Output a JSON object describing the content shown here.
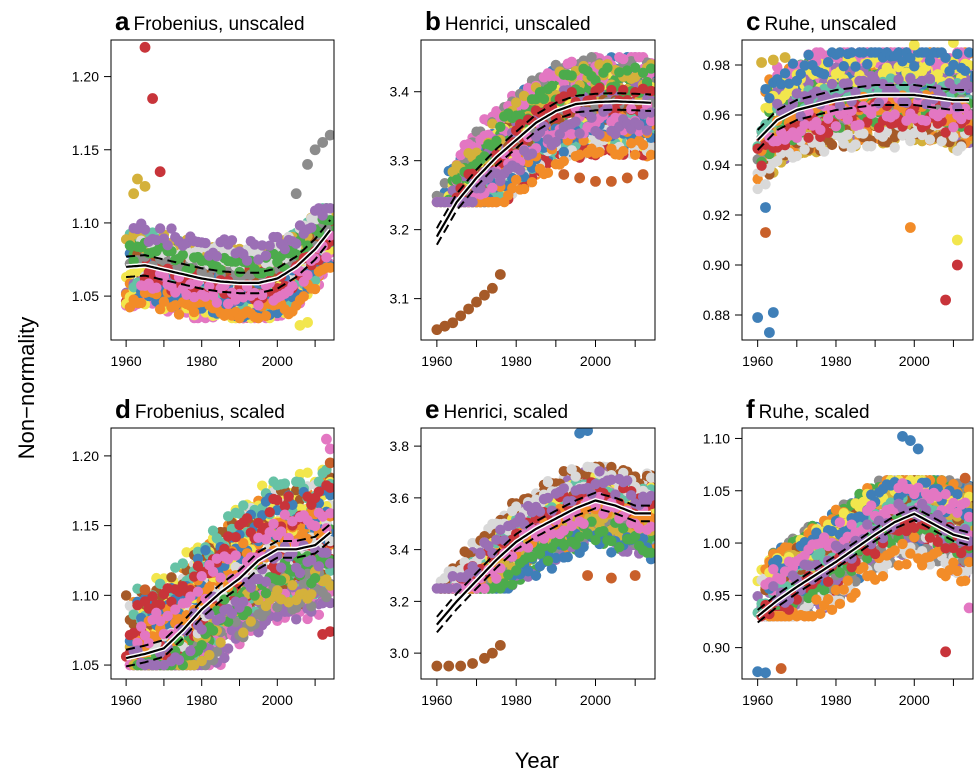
{
  "figure": {
    "ylabel": "Non−normality",
    "xlabel": "Year"
  },
  "palette": [
    "#3f7fb8",
    "#4cab4c",
    "#f28c28",
    "#c8343a",
    "#e377c2",
    "#9b6fb5",
    "#a65a28",
    "#8c8c8c",
    "#d4b13b",
    "#f2e64d",
    "#66c2a5",
    "#d9d9d9"
  ],
  "chart_data": [
    {
      "id": "a",
      "letter": "a",
      "title": "Frobenius, unscaled",
      "type": "scatter",
      "xlim": [
        1956,
        2015
      ],
      "ylim": [
        1.02,
        1.225
      ],
      "xticks": [
        1960,
        1980,
        2000
      ],
      "yticks": [
        1.05,
        1.1,
        1.15,
        1.2
      ],
      "ytick_labels": [
        "1.05",
        "1.10",
        "1.15",
        "1.20"
      ],
      "series_count": 30,
      "band": {
        "min": 1.035,
        "max": 1.11
      },
      "trend": {
        "x": [
          1960,
          1965,
          1970,
          1975,
          1980,
          1985,
          1990,
          1995,
          2000,
          2005,
          2010,
          2014
        ],
        "y": [
          1.07,
          1.071,
          1.068,
          1.065,
          1.062,
          1.06,
          1.059,
          1.059,
          1.062,
          1.07,
          1.082,
          1.095
        ],
        "ci": 0.007
      },
      "highlights": [
        {
          "x": 1965,
          "y": 1.22,
          "color": "#c8343a"
        },
        {
          "x": 1967,
          "y": 1.185,
          "color": "#c8343a"
        },
        {
          "x": 1962,
          "y": 1.12,
          "color": "#d4b13b"
        },
        {
          "x": 1963,
          "y": 1.13,
          "color": "#d4b13b"
        },
        {
          "x": 1965,
          "y": 1.125,
          "color": "#d4b13b"
        },
        {
          "x": 1969,
          "y": 1.135,
          "color": "#c8343a"
        },
        {
          "x": 2005,
          "y": 1.12,
          "color": "#8c8c8c"
        },
        {
          "x": 2008,
          "y": 1.14,
          "color": "#8c8c8c"
        },
        {
          "x": 2010,
          "y": 1.15,
          "color": "#8c8c8c"
        },
        {
          "x": 2012,
          "y": 1.155,
          "color": "#8c8c8c"
        },
        {
          "x": 2014,
          "y": 1.16,
          "color": "#8c8c8c"
        },
        {
          "x": 2006,
          "y": 1.03,
          "color": "#f2e64d"
        },
        {
          "x": 2008,
          "y": 1.032,
          "color": "#f2e64d"
        }
      ]
    },
    {
      "id": "b",
      "letter": "b",
      "title": "Henrici, unscaled",
      "type": "scatter",
      "xlim": [
        1956,
        2015
      ],
      "ylim": [
        3.04,
        3.475
      ],
      "xticks": [
        1960,
        1980,
        2000
      ],
      "yticks": [
        3.1,
        3.2,
        3.3,
        3.4
      ],
      "ytick_labels": [
        "3.1",
        "3.2",
        "3.3",
        "3.4"
      ],
      "series_count": 30,
      "band": {
        "min": 3.24,
        "max": 3.45
      },
      "trend": {
        "x": [
          1960,
          1965,
          1970,
          1975,
          1980,
          1985,
          1990,
          1995,
          2000,
          2005,
          2010,
          2014
        ],
        "y": [
          3.19,
          3.24,
          3.275,
          3.305,
          3.33,
          3.355,
          3.372,
          3.382,
          3.385,
          3.386,
          3.385,
          3.384
        ],
        "ci": 0.012
      },
      "highlights": [
        {
          "x": 1960,
          "y": 3.055,
          "color": "#a65a28"
        },
        {
          "x": 1962,
          "y": 3.06,
          "color": "#a65a28"
        },
        {
          "x": 1964,
          "y": 3.065,
          "color": "#a65a28"
        },
        {
          "x": 1966,
          "y": 3.075,
          "color": "#a65a28"
        },
        {
          "x": 1968,
          "y": 3.085,
          "color": "#a65a28"
        },
        {
          "x": 1970,
          "y": 3.095,
          "color": "#a65a28"
        },
        {
          "x": 1972,
          "y": 3.105,
          "color": "#a65a28"
        },
        {
          "x": 1974,
          "y": 3.115,
          "color": "#a65a28"
        },
        {
          "x": 1976,
          "y": 3.135,
          "color": "#a65a28"
        },
        {
          "x": 1992,
          "y": 3.28,
          "color": "#c9602a"
        },
        {
          "x": 1996,
          "y": 3.275,
          "color": "#c9602a"
        },
        {
          "x": 2000,
          "y": 3.27,
          "color": "#c9602a"
        },
        {
          "x": 2004,
          "y": 3.27,
          "color": "#c9602a"
        },
        {
          "x": 2008,
          "y": 3.275,
          "color": "#c9602a"
        },
        {
          "x": 2012,
          "y": 3.28,
          "color": "#c9602a"
        }
      ]
    },
    {
      "id": "c",
      "letter": "c",
      "title": "Ruhe, unscaled",
      "type": "scatter",
      "xlim": [
        1956,
        2015
      ],
      "ylim": [
        0.87,
        0.99
      ],
      "xticks": [
        1960,
        1980,
        2000
      ],
      "yticks": [
        0.88,
        0.9,
        0.92,
        0.94,
        0.96,
        0.98
      ],
      "ytick_labels": [
        "0.88",
        "0.90",
        "0.92",
        "0.94",
        "0.96",
        "0.98"
      ],
      "series_count": 30,
      "band": {
        "min": 0.93,
        "max": 0.985
      },
      "trend": {
        "x": [
          1960,
          1965,
          1970,
          1975,
          1980,
          1985,
          1990,
          1995,
          2000,
          2005,
          2010,
          2014
        ],
        "y": [
          0.95,
          0.958,
          0.962,
          0.964,
          0.966,
          0.967,
          0.968,
          0.968,
          0.968,
          0.967,
          0.966,
          0.966
        ],
        "ci": 0.004
      },
      "highlights": [
        {
          "x": 1960,
          "y": 0.879,
          "color": "#3f7fb8"
        },
        {
          "x": 1963,
          "y": 0.873,
          "color": "#3f7fb8"
        },
        {
          "x": 1964,
          "y": 0.881,
          "color": "#3f7fb8"
        },
        {
          "x": 1962,
          "y": 0.923,
          "color": "#3f7fb8"
        },
        {
          "x": 1962,
          "y": 0.913,
          "color": "#c9602a"
        },
        {
          "x": 1999,
          "y": 0.915,
          "color": "#f28c28"
        },
        {
          "x": 2008,
          "y": 0.886,
          "color": "#c8343a"
        },
        {
          "x": 2011,
          "y": 0.9,
          "color": "#c8343a"
        },
        {
          "x": 2011,
          "y": 0.91,
          "color": "#f2e64d"
        },
        {
          "x": 1961,
          "y": 0.981,
          "color": "#d4b13b"
        },
        {
          "x": 1964,
          "y": 0.982,
          "color": "#d4b13b"
        },
        {
          "x": 1967,
          "y": 0.983,
          "color": "#d4b13b"
        },
        {
          "x": 2000,
          "y": 0.988,
          "color": "#f2e64d"
        },
        {
          "x": 2010,
          "y": 0.989,
          "color": "#f2e64d"
        }
      ]
    },
    {
      "id": "d",
      "letter": "d",
      "title": "Frobenius, scaled",
      "type": "scatter",
      "xlim": [
        1956,
        2015
      ],
      "ylim": [
        1.04,
        1.22
      ],
      "xticks": [
        1960,
        1980,
        2000
      ],
      "yticks": [
        1.05,
        1.1,
        1.15,
        1.2
      ],
      "ytick_labels": [
        "1.05",
        "1.10",
        "1.15",
        "1.20"
      ],
      "series_count": 30,
      "band": {
        "min": 1.05,
        "max": 1.19
      },
      "trend": {
        "x": [
          1960,
          1965,
          1970,
          1975,
          1980,
          1985,
          1990,
          1995,
          2000,
          2005,
          2010,
          2014
        ],
        "y": [
          1.055,
          1.058,
          1.062,
          1.075,
          1.09,
          1.102,
          1.112,
          1.125,
          1.133,
          1.133,
          1.136,
          1.145
        ],
        "ci": 0.006
      },
      "highlights": [
        {
          "x": 1965,
          "y": 1.104,
          "color": "#c9602a"
        },
        {
          "x": 2013,
          "y": 1.212,
          "color": "#e377c2"
        },
        {
          "x": 2014,
          "y": 1.205,
          "color": "#e377c2"
        },
        {
          "x": 2014,
          "y": 1.195,
          "color": "#c9602a"
        },
        {
          "x": 2012,
          "y": 1.072,
          "color": "#c8343a"
        },
        {
          "x": 2014,
          "y": 1.074,
          "color": "#c8343a"
        }
      ]
    },
    {
      "id": "e",
      "letter": "e",
      "title": "Henrici, scaled",
      "type": "scatter",
      "xlim": [
        1956,
        2015
      ],
      "ylim": [
        2.9,
        3.87
      ],
      "xticks": [
        1960,
        1980,
        2000
      ],
      "yticks": [
        3.0,
        3.2,
        3.4,
        3.6,
        3.8
      ],
      "ytick_labels": [
        "3.0",
        "3.2",
        "3.4",
        "3.6",
        "3.8"
      ],
      "series_count": 30,
      "band": {
        "min": 3.25,
        "max": 3.72
      },
      "trend": {
        "x": [
          1960,
          1965,
          1970,
          1975,
          1980,
          1985,
          1990,
          1995,
          2000,
          2005,
          2010,
          2014
        ],
        "y": [
          3.11,
          3.2,
          3.28,
          3.36,
          3.43,
          3.48,
          3.52,
          3.56,
          3.59,
          3.57,
          3.54,
          3.54
        ],
        "ci": 0.03
      },
      "highlights": [
        {
          "x": 1960,
          "y": 2.95,
          "color": "#a65a28"
        },
        {
          "x": 1963,
          "y": 2.95,
          "color": "#a65a28"
        },
        {
          "x": 1966,
          "y": 2.95,
          "color": "#a65a28"
        },
        {
          "x": 1969,
          "y": 2.96,
          "color": "#a65a28"
        },
        {
          "x": 1972,
          "y": 2.98,
          "color": "#a65a28"
        },
        {
          "x": 1974,
          "y": 3.0,
          "color": "#a65a28"
        },
        {
          "x": 1976,
          "y": 3.03,
          "color": "#a65a28"
        },
        {
          "x": 1996,
          "y": 3.85,
          "color": "#3f7fb8"
        },
        {
          "x": 1998,
          "y": 3.86,
          "color": "#3f7fb8"
        },
        {
          "x": 1998,
          "y": 3.3,
          "color": "#c9602a"
        },
        {
          "x": 2004,
          "y": 3.29,
          "color": "#c9602a"
        },
        {
          "x": 2010,
          "y": 3.3,
          "color": "#c9602a"
        }
      ]
    },
    {
      "id": "f",
      "letter": "f",
      "title": "Ruhe, scaled",
      "type": "scatter",
      "xlim": [
        1956,
        2015
      ],
      "ylim": [
        0.87,
        1.11
      ],
      "xticks": [
        1960,
        1980,
        2000
      ],
      "yticks": [
        0.9,
        0.95,
        1.0,
        1.05,
        1.1
      ],
      "ytick_labels": [
        "0.90",
        "0.95",
        "1.00",
        "1.05",
        "1.10"
      ],
      "series_count": 30,
      "band": {
        "min": 0.93,
        "max": 1.06
      },
      "trend": {
        "x": [
          1960,
          1965,
          1970,
          1975,
          1980,
          1985,
          1990,
          1995,
          2000,
          2005,
          2010,
          2014
        ],
        "y": [
          0.93,
          0.945,
          0.958,
          0.97,
          0.982,
          0.995,
          1.008,
          1.02,
          1.028,
          1.018,
          1.008,
          1.004
        ],
        "ci": 0.006
      },
      "highlights": [
        {
          "x": 1960,
          "y": 0.877,
          "color": "#3f7fb8"
        },
        {
          "x": 1962,
          "y": 0.876,
          "color": "#3f7fb8"
        },
        {
          "x": 1966,
          "y": 0.88,
          "color": "#c9602a"
        },
        {
          "x": 1997,
          "y": 1.102,
          "color": "#3f7fb8"
        },
        {
          "x": 1999,
          "y": 1.098,
          "color": "#3f7fb8"
        },
        {
          "x": 2001,
          "y": 1.09,
          "color": "#3f7fb8"
        },
        {
          "x": 2008,
          "y": 0.896,
          "color": "#c8343a"
        },
        {
          "x": 2014,
          "y": 0.938,
          "color": "#e377c2"
        },
        {
          "x": 2013,
          "y": 1.062,
          "color": "#c9602a"
        }
      ]
    }
  ]
}
